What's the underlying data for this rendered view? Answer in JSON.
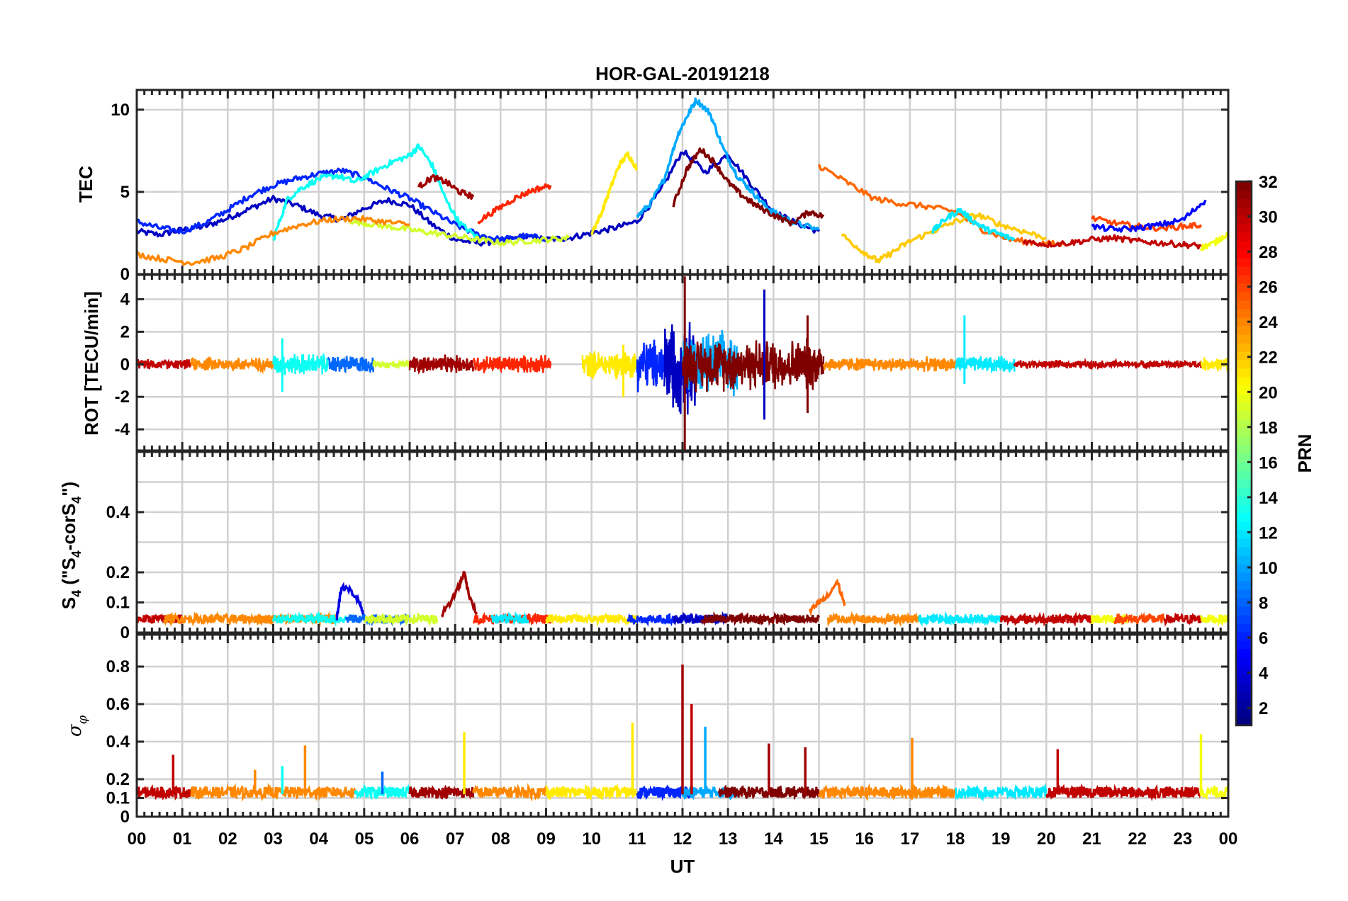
{
  "chart_data": {
    "type": "line",
    "title": "HOR-GAL-20191218",
    "xlabel": "UT",
    "xlim": [
      0,
      24
    ],
    "x_tick_labels": [
      "00",
      "01",
      "02",
      "03",
      "04",
      "05",
      "06",
      "07",
      "08",
      "09",
      "10",
      "11",
      "12",
      "13",
      "14",
      "15",
      "16",
      "17",
      "18",
      "19",
      "20",
      "21",
      "22",
      "23",
      "00"
    ],
    "colorbar": {
      "label": "PRN",
      "range": [
        1,
        32
      ],
      "colormap": "jet",
      "ticks": [
        "2",
        "4",
        "6",
        "8",
        "10",
        "12",
        "14",
        "16",
        "18",
        "20",
        "22",
        "24",
        "26",
        "28",
        "30",
        "32"
      ]
    },
    "panels": [
      {
        "id": "tec",
        "ylabel": "TEC",
        "ylim": [
          0,
          11.2
        ],
        "yticks": [
          "0",
          "5",
          "10"
        ],
        "series": [
          {
            "prn": 3,
            "x": [
              0,
              0.5,
              1,
              1.5,
              2,
              2.5,
              3,
              3.5,
              4,
              4.5,
              5,
              5.5,
              6,
              6.5,
              7,
              7.5,
              8,
              8.5,
              9,
              9.5,
              10,
              10.5,
              11,
              11.5,
              12,
              12.5,
              13,
              13.5,
              14,
              14.5,
              15
            ],
            "y": [
              2.6,
              2.4,
              2.7,
              2.9,
              3.4,
              4.0,
              4.6,
              4.2,
              3.6,
              3.3,
              4.0,
              4.5,
              4.2,
              3.0,
              2.1,
              1.9,
              2.0,
              2.3,
              2.1,
              2.2,
              2.5,
              2.8,
              3.2,
              5.0,
              7.5,
              6.2,
              7.3,
              5.5,
              3.8,
              3.1,
              2.6
            ]
          },
          {
            "prn": 6,
            "x": [
              0,
              0.5,
              1,
              1.5,
              2,
              2.5,
              3,
              3.5,
              4,
              4.5,
              5,
              5.5,
              6,
              6.5,
              7,
              7.5,
              8,
              8.5,
              9
            ],
            "y": [
              3.2,
              2.8,
              2.6,
              3.1,
              3.9,
              4.8,
              5.4,
              5.8,
              6.1,
              6.3,
              5.9,
              5.2,
              4.6,
              3.8,
              3.0,
              2.4,
              2.1,
              2.3,
              2.2
            ]
          },
          {
            "prn": 10,
            "x": [
              11,
              11.3,
              11.6,
              11.9,
              12.1,
              12.3,
              12.6,
              12.9,
              13.2,
              13.5,
              13.8,
              14.1,
              14.5,
              15
            ],
            "y": [
              3.5,
              4.3,
              5.8,
              8.5,
              9.6,
              10.6,
              9.8,
              7.6,
              6.0,
              5.1,
              4.2,
              3.6,
              3.1,
              2.7
            ]
          },
          {
            "prn": 13,
            "x": [
              3,
              3.3,
              3.6,
              4,
              4.4,
              4.8,
              5.2,
              5.6,
              6,
              6.2,
              6.5,
              6.8,
              7.1,
              7.5
            ],
            "y": [
              2.1,
              4.5,
              5.2,
              5.8,
              6.0,
              5.6,
              6.2,
              6.8,
              7.2,
              7.8,
              6.6,
              4.5,
              3.1,
              2.2
            ]
          },
          {
            "prn": 19,
            "x": [
              4.6,
              5,
              5.5,
              6,
              6.5,
              7,
              7.5,
              8,
              8.5,
              9,
              9.5
            ],
            "y": [
              3.3,
              3.1,
              2.9,
              2.7,
              2.5,
              2.3,
              2.1,
              1.9,
              2.0,
              2.1,
              2.2
            ]
          },
          {
            "prn": 21,
            "x": [
              10,
              10.2,
              10.4,
              10.6,
              10.8,
              11
            ],
            "y": [
              2.5,
              3.6,
              5.1,
              6.6,
              7.3,
              6.4
            ]
          },
          {
            "prn": 24,
            "x": [
              0,
              0.6,
              1.2,
              1.8,
              2.4,
              3,
              3.6,
              4.2,
              4.8,
              5.4,
              6
            ],
            "y": [
              1.2,
              0.9,
              0.7,
              1.0,
              1.6,
              2.5,
              3.0,
              3.3,
              3.4,
              3.2,
              3.0
            ]
          },
          {
            "prn": 25,
            "x": [
              15,
              15.6,
              16.2,
              16.8,
              17.4,
              18,
              18.6,
              19.2,
              19.8,
              20.4
            ],
            "y": [
              6.6,
              5.6,
              4.6,
              4.3,
              4.1,
              3.8,
              2.7,
              2.1,
              1.9,
              1.8
            ]
          },
          {
            "prn": 27,
            "x": [
              7.5,
              7.9,
              8.3,
              8.7,
              9.1
            ],
            "y": [
              3.2,
              3.9,
              4.6,
              5.1,
              5.4
            ]
          },
          {
            "prn": 31,
            "x": [
              6.2,
              6.5,
              6.8,
              7.1,
              7.4
            ],
            "y": [
              5.3,
              5.9,
              5.6,
              5.0,
              4.7
            ]
          },
          {
            "prn": 32,
            "x": [
              11.8,
              12.1,
              12.4,
              12.7,
              13,
              13.3,
              13.6,
              14,
              14.4,
              14.8,
              15.1
            ],
            "y": [
              4.2,
              6.4,
              7.6,
              6.8,
              5.6,
              4.8,
              4.2,
              3.6,
              3.1,
              3.8,
              3.5
            ]
          },
          {
            "prn": 22,
            "x": [
              15.5,
              16,
              16.3,
              16.6,
              17,
              17.5,
              18,
              18.5,
              19,
              19.5,
              20
            ],
            "y": [
              2.4,
              1.3,
              0.8,
              1.3,
              2.0,
              2.6,
              3.2,
              3.6,
              3.0,
              2.6,
              2.2
            ]
          },
          {
            "prn": 12,
            "x": [
              17.5,
              17.8,
              18.1,
              18.4,
              18.7,
              19,
              19.3
            ],
            "y": [
              2.6,
              3.4,
              3.9,
              3.2,
              2.7,
              2.4,
              2.1
            ]
          },
          {
            "prn": 30,
            "x": [
              19.5,
              20,
              20.5,
              21,
              21.5,
              22,
              22.5,
              23,
              23.4
            ],
            "y": [
              2.0,
              1.8,
              1.9,
              2.1,
              2.2,
              2.0,
              1.9,
              1.8,
              1.7
            ]
          },
          {
            "prn": 26,
            "x": [
              21,
              21.5,
              22,
              22.5,
              23,
              23.4
            ],
            "y": [
              3.4,
              3.1,
              2.9,
              2.8,
              2.9,
              3.0
            ]
          },
          {
            "prn": 5,
            "x": [
              21,
              21.5,
              22,
              22.5,
              23,
              23.5
            ],
            "y": [
              2.9,
              2.7,
              2.8,
              3.0,
              3.3,
              4.5
            ]
          },
          {
            "prn": 20,
            "x": [
              23.4,
              23.7,
              24
            ],
            "y": [
              1.6,
              1.9,
              2.5
            ]
          }
        ]
      },
      {
        "id": "rot",
        "ylabel": "ROT [TECU/min]",
        "ylim": [
          -5.3,
          5.5
        ],
        "yticks": [
          "-4",
          "-2",
          "0",
          "2",
          "4"
        ]
      },
      {
        "id": "s4",
        "ylabel": "S4 (\"S4-corS4\")",
        "ylabel_parts": {
          "main": "S",
          "sub": "4",
          "mid": " (\"S",
          "end": "-corS",
          "end2": "\")"
        },
        "ylim": [
          0,
          0.6
        ],
        "yticks": [
          "0",
          "0.1",
          "0.2",
          "0.4"
        ],
        "series": [
          {
            "prn": 31,
            "x": [
              6.7,
              6.9,
              7.1,
              7.2,
              7.3,
              7.5
            ],
            "y": [
              0.06,
              0.1,
              0.16,
              0.2,
              0.13,
              0.05
            ]
          },
          {
            "prn": 4,
            "x": [
              4.4,
              4.5,
              4.7,
              4.9,
              5.0
            ],
            "y": [
              0.05,
              0.15,
              0.14,
              0.1,
              0.05
            ]
          },
          {
            "prn": 25,
            "x": [
              14.8,
              15,
              15.2,
              15.4,
              15.6
            ],
            "y": [
              0.07,
              0.1,
              0.12,
              0.17,
              0.08
            ]
          }
        ]
      },
      {
        "id": "sigma",
        "ylabel": "σ φ",
        "ylabel_parts": {
          "main": "σ",
          "sub": "φ"
        },
        "ylim": [
          0,
          0.97
        ],
        "yticks": [
          "0",
          "0.1",
          "0.2",
          "0.4",
          "0.6",
          "0.8"
        ],
        "spikes": [
          {
            "prn": 30,
            "x": 0.8,
            "y": 0.33
          },
          {
            "prn": 24,
            "x": 2.6,
            "y": 0.25
          },
          {
            "prn": 13,
            "x": 3.2,
            "y": 0.27
          },
          {
            "prn": 24,
            "x": 3.7,
            "y": 0.38
          },
          {
            "prn": 8,
            "x": 5.4,
            "y": 0.24
          },
          {
            "prn": 21,
            "x": 7.2,
            "y": 0.45
          },
          {
            "prn": 21,
            "x": 10.9,
            "y": 0.5
          },
          {
            "prn": 31,
            "x": 12.0,
            "y": 0.81
          },
          {
            "prn": 30,
            "x": 12.2,
            "y": 0.6
          },
          {
            "prn": 10,
            "x": 12.5,
            "y": 0.48
          },
          {
            "prn": 31,
            "x": 13.9,
            "y": 0.39
          },
          {
            "prn": 31,
            "x": 14.7,
            "y": 0.37
          },
          {
            "prn": 24,
            "x": 17.05,
            "y": 0.42
          },
          {
            "prn": 30,
            "x": 20.25,
            "y": 0.36
          },
          {
            "prn": 20,
            "x": 23.4,
            "y": 0.44
          }
        ]
      }
    ]
  }
}
